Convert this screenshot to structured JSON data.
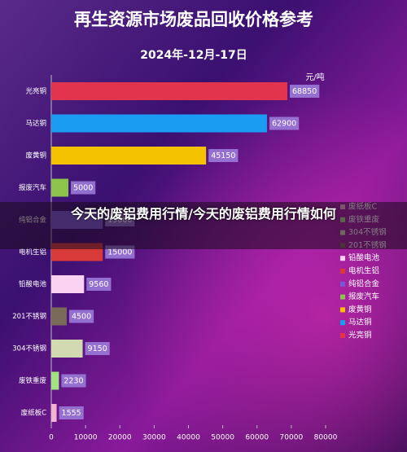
{
  "chart_data": {
    "type": "bar",
    "title": "再生资源市场废品回收价格参考",
    "subtitle": "2024年-12月-17日",
    "unit_label": "元/吨",
    "banner": "今天的废铝费用行情/今天的废铝费用行情如何",
    "orientation": "horizontal",
    "categories": [
      "光亮铜",
      "马达铜",
      "废黄铜",
      "报废汽车",
      "纯铝合金",
      "电机生铝",
      "铅酸电池",
      "201不锈钢",
      "304不锈钢",
      "废铁重废",
      "废纸板C"
    ],
    "values": [
      68850,
      62900,
      45150,
      5000,
      15000,
      15000,
      9560,
      4500,
      9150,
      2230,
      1555
    ],
    "colors": [
      "#e2344c",
      "#1a9cf2",
      "#f5c200",
      "#8cc44c",
      "#7a5ad2",
      "#d83a3a",
      "#f8d2f0",
      "#7a6a5a",
      "#d2dab2",
      "#a2e282",
      "#f2b2d2"
    ],
    "xlim": [
      0,
      80000
    ],
    "xticks": [
      0,
      10000,
      20000,
      30000,
      40000,
      50000,
      60000,
      70000,
      80000
    ],
    "legend": "right"
  }
}
